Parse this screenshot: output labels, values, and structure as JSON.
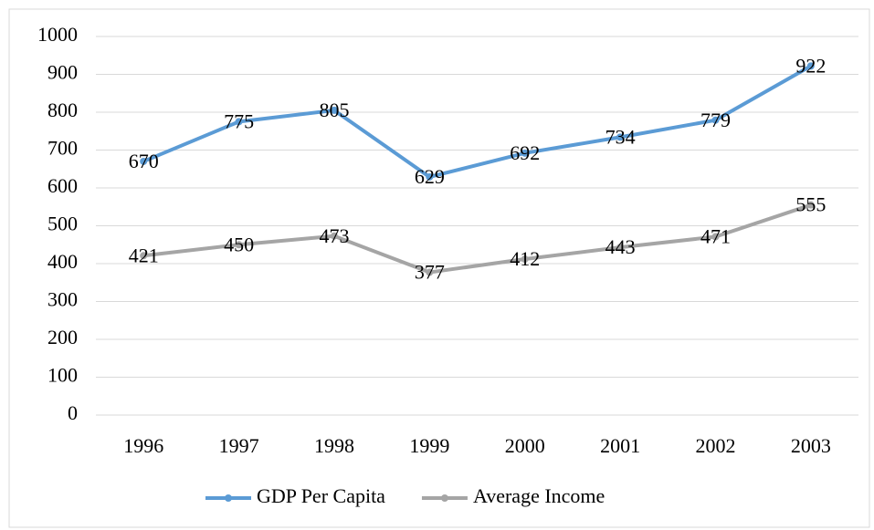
{
  "chart_data": {
    "type": "line",
    "categories": [
      "1996",
      "1997",
      "1998",
      "1999",
      "2000",
      "2001",
      "2002",
      "2003"
    ],
    "series": [
      {
        "name": "GDP Per Capita",
        "color": "#5b9bd5",
        "values": [
          670,
          775,
          805,
          629,
          692,
          734,
          779,
          922
        ]
      },
      {
        "name": "Average Income",
        "color": "#a5a5a5",
        "values": [
          421,
          450,
          473,
          377,
          412,
          443,
          471,
          555
        ]
      }
    ],
    "ylim": [
      0,
      1000
    ],
    "yticks": [
      0,
      100,
      200,
      300,
      400,
      500,
      600,
      700,
      800,
      900,
      1000
    ],
    "grid": true,
    "legend": "bottom",
    "data_labels": true
  }
}
